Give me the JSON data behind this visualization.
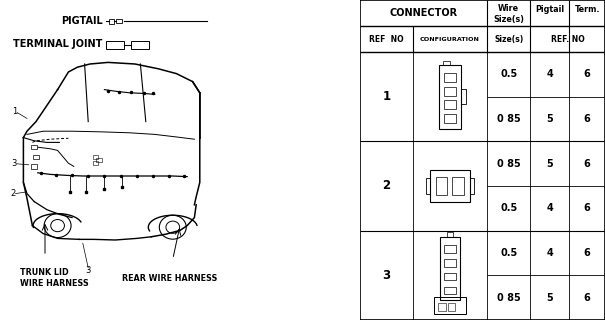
{
  "bg_color": "#ffffff",
  "line_color": "#000000",
  "text_color": "#000000",
  "table": {
    "rows": [
      {
        "ref": "1",
        "wire_sizes": [
          "0.5",
          "0 85"
        ],
        "pigtails": [
          "4",
          "5"
        ],
        "terms": [
          "6",
          "6"
        ]
      },
      {
        "ref": "2",
        "wire_sizes": [
          "0 85",
          "0.5"
        ],
        "pigtails": [
          "5",
          "4"
        ],
        "terms": [
          "6",
          "6"
        ]
      },
      {
        "ref": "3",
        "wire_sizes": [
          "0.5",
          "0 85"
        ],
        "pigtails": [
          "4",
          "5"
        ],
        "terms": [
          "6",
          "6"
        ]
      }
    ]
  },
  "pigtail_label": "PIGTAIL",
  "terminal_joint_label": "TERMINAL JOINT",
  "trunk_lid_label": "TRUNK LID\nWIRE HARNESS",
  "rear_wire_label": "REAR WIRE HARNESS",
  "font_size_small": 5.8,
  "font_size_med": 7.0,
  "font_size_body": 6.5
}
